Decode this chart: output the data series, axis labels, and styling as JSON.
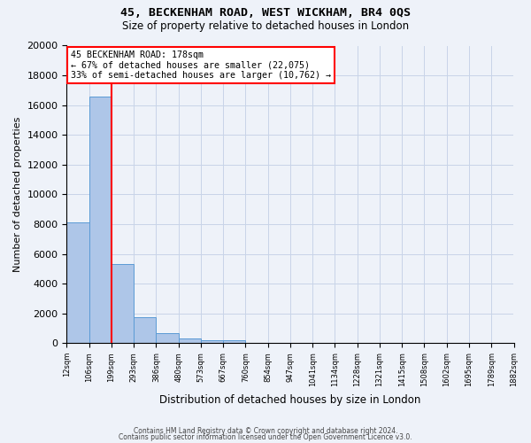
{
  "title": "45, BECKENHAM ROAD, WEST WICKHAM, BR4 0QS",
  "subtitle": "Size of property relative to detached houses in London",
  "xlabel": "Distribution of detached houses by size in London",
  "ylabel": "Number of detached properties",
  "bar_values": [
    8100,
    16600,
    5300,
    1750,
    650,
    300,
    200,
    200,
    0,
    0,
    0,
    0,
    0,
    0,
    0,
    0,
    0,
    0,
    0,
    0
  ],
  "bin_labels": [
    "12sqm",
    "106sqm",
    "199sqm",
    "293sqm",
    "386sqm",
    "480sqm",
    "573sqm",
    "667sqm",
    "760sqm",
    "854sqm",
    "947sqm",
    "1041sqm",
    "1134sqm",
    "1228sqm",
    "1321sqm",
    "1415sqm",
    "1508sqm",
    "1602sqm",
    "1695sqm",
    "1789sqm",
    "1882sqm"
  ],
  "bar_color": "#aec6e8",
  "bar_edge_color": "#5b9bd5",
  "vline_bin": 2,
  "vline_color": "red",
  "annotation_title": "45 BECKENHAM ROAD: 178sqm",
  "annotation_line1": "← 67% of detached houses are smaller (22,075)",
  "annotation_line2": "33% of semi-detached houses are larger (10,762) →",
  "annotation_box_color": "white",
  "annotation_box_edge": "red",
  "ylim": [
    0,
    20000
  ],
  "yticks": [
    0,
    2000,
    4000,
    6000,
    8000,
    10000,
    12000,
    14000,
    16000,
    18000,
    20000
  ],
  "footer1": "Contains HM Land Registry data © Crown copyright and database right 2024.",
  "footer2": "Contains public sector information licensed under the Open Government Licence v3.0.",
  "bg_color": "#eef2f9",
  "grid_color": "#c8d4e8",
  "title_fontsize": 9.5,
  "subtitle_fontsize": 8.5
}
